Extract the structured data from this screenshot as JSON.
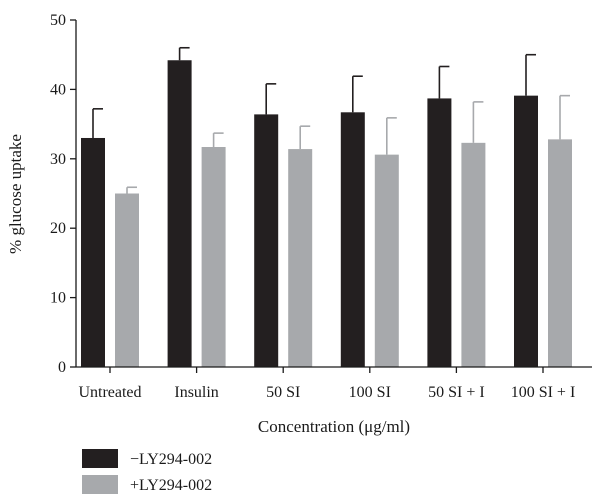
{
  "chart_data": {
    "type": "bar",
    "xlabel": "Concentration (μg/ml)",
    "ylabel": "% glucose uptake",
    "ylim": [
      0,
      50
    ],
    "yticks": [
      0,
      10,
      20,
      30,
      40,
      50
    ],
    "categories": [
      "Untreated",
      "Insulin",
      "50 SI",
      "100 SI",
      "50 SI + I",
      "100 SI + I"
    ],
    "series": [
      {
        "name": "−LY294-002",
        "color": "#231f20",
        "values": [
          33.0,
          44.2,
          36.4,
          36.7,
          38.7,
          39.1
        ],
        "errors": [
          4.2,
          1.8,
          4.4,
          5.2,
          4.6,
          5.9
        ]
      },
      {
        "name": "+LY294-002",
        "color": "#a7a9ac",
        "values": [
          25.0,
          31.7,
          31.4,
          30.6,
          32.3,
          32.8
        ],
        "errors": [
          0.9,
          2.0,
          3.3,
          5.3,
          5.9,
          6.3
        ]
      }
    ],
    "legend_position": "bottom-left"
  }
}
